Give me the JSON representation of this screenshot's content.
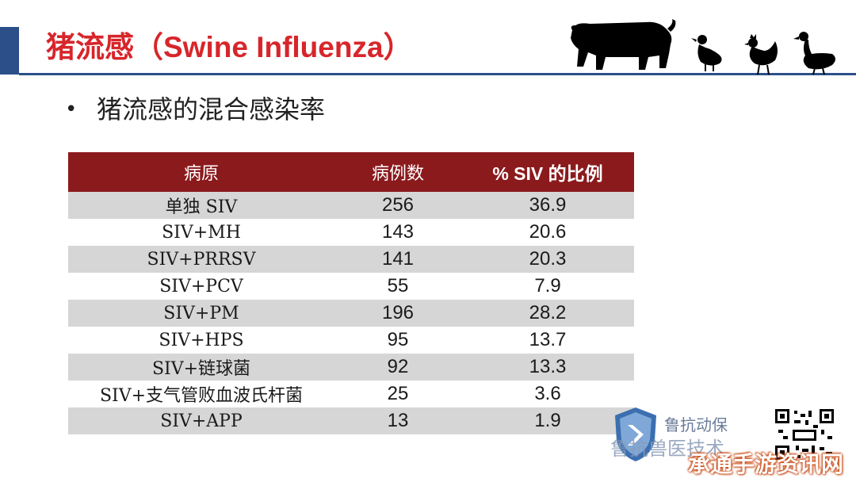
{
  "slide": {
    "title": "猪流感（Swine Influenza）",
    "bullet": "猪流感的混合感染率",
    "bullet_marker": "•"
  },
  "table": {
    "headers": [
      "病原",
      "病例数",
      "% SIV 的比例"
    ],
    "rows": [
      [
        "单独 SIV",
        "256",
        "36.9"
      ],
      [
        "SIV+MH",
        "143",
        "20.6"
      ],
      [
        "SIV+PRRSV",
        "141",
        "20.3"
      ],
      [
        "SIV+PCV",
        "55",
        "7.9"
      ],
      [
        "SIV+PM",
        "196",
        "28.2"
      ],
      [
        "SIV+HPS",
        "95",
        "13.7"
      ],
      [
        "SIV+链球菌",
        "92",
        "13.3"
      ],
      [
        "SIV+支气管败血波氏杆菌",
        "25",
        "3.6"
      ],
      [
        "SIV+APP",
        "13",
        "1.9"
      ]
    ]
  },
  "branding": {
    "logo_text": "鲁抗动保",
    "wechat_text": "鲁抗兽医技术",
    "watermark": "承通手游资讯网"
  },
  "colors": {
    "title_red": "#d7262b",
    "header_maroon": "#8b1a1d",
    "accent_blue": "#2c4f8a",
    "row_gray": "#d6d6d6"
  },
  "icons": [
    "pig-silhouette-icon",
    "duck-silhouette-icon",
    "rooster-silhouette-icon",
    "goose-silhouette-icon",
    "shield-logo-icon",
    "qr-code-icon"
  ]
}
